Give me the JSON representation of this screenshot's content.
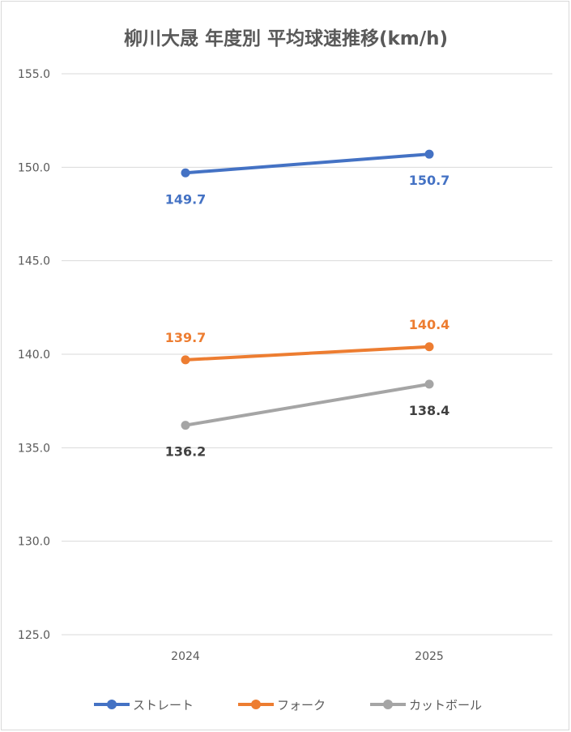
{
  "chart_data": {
    "type": "line",
    "title": "柳川大晟 年度別 平均球速推移(km/h)",
    "categories": [
      "2024",
      "2025"
    ],
    "ylim": [
      125.0,
      155.0
    ],
    "yticks": [
      "155.0",
      "150.0",
      "145.0",
      "140.0",
      "135.0",
      "130.0",
      "125.0"
    ],
    "ytick_values": [
      155,
      150,
      145,
      140,
      135,
      130,
      125
    ],
    "grid": true,
    "legend_position": "bottom",
    "series": [
      {
        "name": "ストレート",
        "values": [
          149.7,
          150.7
        ],
        "labels": [
          "149.7",
          "150.7"
        ],
        "color": "#4472c4",
        "label_color": "#4472c4",
        "label_placement": "below"
      },
      {
        "name": "フォーク",
        "values": [
          139.7,
          140.4
        ],
        "labels": [
          "139.7",
          "140.4"
        ],
        "color": "#ed7d31",
        "label_color": "#ed7d31",
        "label_placement": "above"
      },
      {
        "name": "カットボール",
        "values": [
          136.2,
          138.4
        ],
        "labels": [
          "136.2",
          "138.4"
        ],
        "color": "#a5a5a5",
        "label_color": "#404040",
        "label_placement": "below"
      }
    ]
  }
}
